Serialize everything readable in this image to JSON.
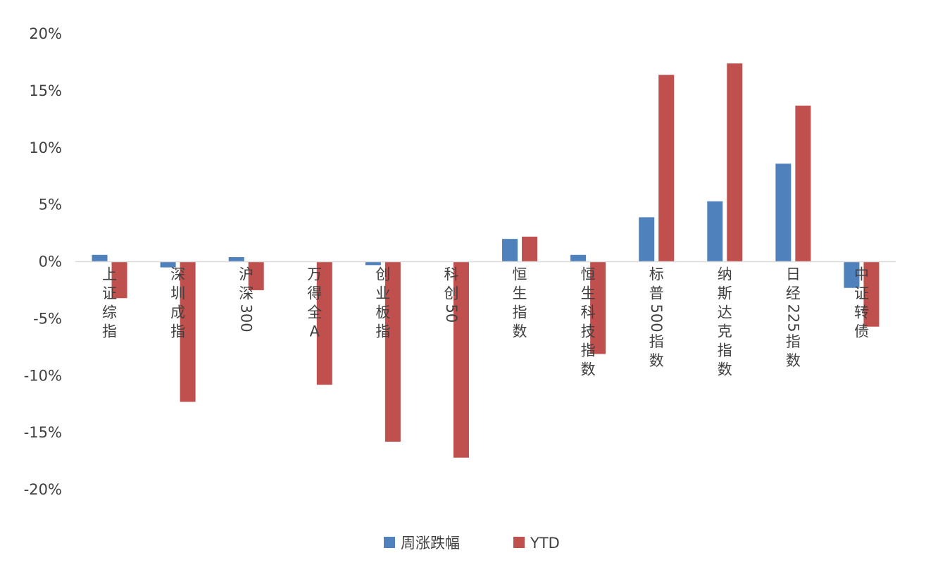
{
  "chart_data": {
    "type": "bar",
    "title": "",
    "xlabel": "",
    "ylabel": "",
    "ylim": [
      -20,
      20
    ],
    "yticks": [
      20,
      15,
      10,
      5,
      0,
      -5,
      -10,
      -15,
      -20
    ],
    "ytick_labels": [
      "20%",
      "15%",
      "10%",
      "5%",
      "0%",
      "-5%",
      "-10%",
      "-15%",
      "-20%"
    ],
    "grid": false,
    "legend_position": "bottom",
    "categories": [
      "上证综指",
      "深圳成指",
      "沪深300",
      "万得全A",
      "创业板指",
      "科创50",
      "恒生指数",
      "恒生科技指数",
      "标普500指数",
      "纳斯达克指数",
      "日经225指数",
      "中证转债"
    ],
    "series": [
      {
        "name": "周涨跌幅",
        "color": "#4f81bd",
        "values": [
          0.6,
          -0.5,
          0.4,
          0.0,
          -0.3,
          0.0,
          2.0,
          0.6,
          3.9,
          5.3,
          8.6,
          -2.3
        ]
      },
      {
        "name": "YTD",
        "color": "#c0504d",
        "values": [
          -3.2,
          -12.3,
          -2.5,
          -10.8,
          -15.8,
          -17.2,
          2.2,
          -8.1,
          16.4,
          17.4,
          13.7,
          -5.7
        ]
      }
    ]
  }
}
